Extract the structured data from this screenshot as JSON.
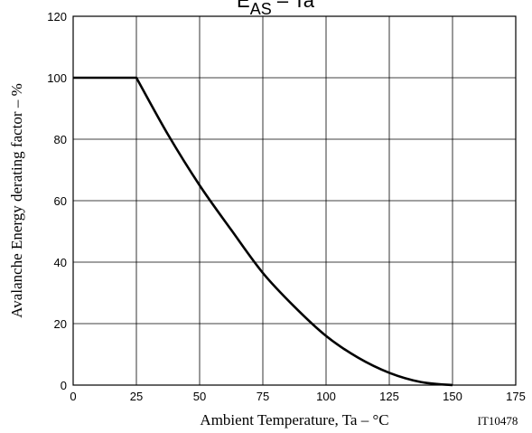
{
  "chart_data": {
    "type": "line",
    "title": {
      "main": "E",
      "subscript": "AS",
      "rest": " – Ta"
    },
    "xlabel": "Ambient Temperature, Ta  –  °C",
    "ylabel": "Avalanche Energy derating factor  –  %",
    "figure_code": "IT10478",
    "xlim": [
      0,
      175
    ],
    "ylim": [
      0,
      120
    ],
    "xticks": [
      "0",
      "25",
      "50",
      "75",
      "100",
      "125",
      "150",
      "175"
    ],
    "yticks": [
      "0",
      "20",
      "40",
      "60",
      "80",
      "100",
      "120"
    ],
    "grid": true,
    "series": [
      {
        "x": [
          0,
          25,
          37.5,
          50,
          62.5,
          75,
          87.5,
          100,
          112.5,
          125,
          137.5,
          150
        ],
        "y": [
          100,
          100,
          81.5,
          65,
          50.5,
          36.5,
          25.5,
          16,
          9,
          4,
          1,
          0
        ]
      }
    ]
  }
}
